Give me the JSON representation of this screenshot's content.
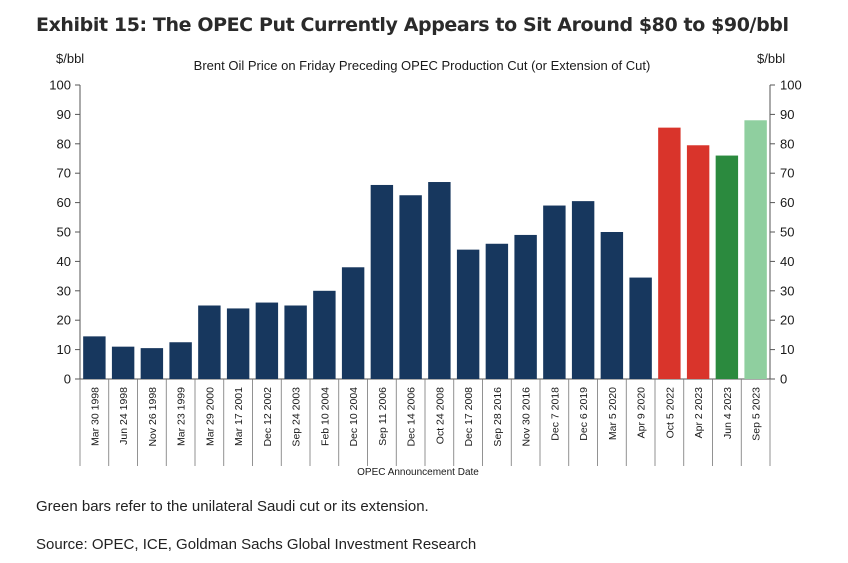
{
  "title": "Exhibit 15: The OPEC Put Currently Appears to Sit Around $80 to $90/bbl",
  "footnotes": {
    "note": "Green bars refer to the unilateral Saudi cut or its extension.",
    "source": "Source: OPEC, ICE, Goldman Sachs Global Investment Research"
  },
  "colors": {
    "navy": "#17375e",
    "red": "#d9342b",
    "green": "#2b8a3e",
    "light_green": "#8fcf9f"
  },
  "chart_data": {
    "type": "bar",
    "title": "Brent Oil Price on Friday Preceding OPEC Production Cut (or Extension of Cut)",
    "xlabel": "OPEC Announcement Date",
    "ylabel_left": "$/bbl",
    "ylabel_right": "$/bbl",
    "ylim": [
      0,
      100
    ],
    "yticks": [
      0,
      10,
      20,
      30,
      40,
      50,
      60,
      70,
      80,
      90,
      100
    ],
    "grid": false,
    "legend": "none",
    "categories": [
      "Mar 30 1998",
      "Jun 24 1998",
      "Nov 26 1998",
      "Mar 23 1999",
      "Mar 29 2000",
      "Mar 17 2001",
      "Dec 12 2002",
      "Sep 24 2003",
      "Feb 10 2004",
      "Dec 10 2004",
      "Sep 11 2006",
      "Dec 14 2006",
      "Oct 24 2008",
      "Dec 17 2008",
      "Sep 28 2016",
      "Nov 30 2016",
      "Dec 7 2018",
      "Dec 6 2019",
      "Mar 5 2020",
      "Apr 9 2020",
      "Oct 5 2022",
      "Apr 2 2023",
      "Jun 4 2023",
      "Sep 5 2023"
    ],
    "values": [
      14.5,
      11,
      10.5,
      12.5,
      25,
      24,
      26,
      25,
      30,
      38,
      66,
      62.5,
      67,
      44,
      46,
      49,
      59,
      60.5,
      50,
      34.5,
      85.5,
      79.5,
      76,
      88
    ],
    "bar_colors": [
      "navy",
      "navy",
      "navy",
      "navy",
      "navy",
      "navy",
      "navy",
      "navy",
      "navy",
      "navy",
      "navy",
      "navy",
      "navy",
      "navy",
      "navy",
      "navy",
      "navy",
      "navy",
      "navy",
      "navy",
      "red",
      "red",
      "green",
      "light_green"
    ]
  }
}
